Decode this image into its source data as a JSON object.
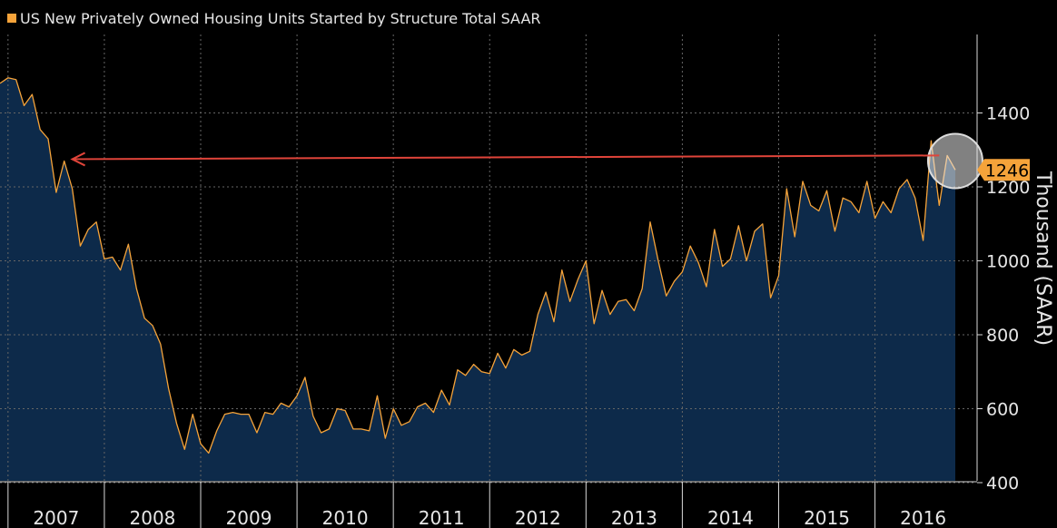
{
  "chart_data": {
    "type": "area",
    "title": "US New Privately Owned Housing Units Started by Structure Total SAAR",
    "ylabel": "Thousand (SAAR)",
    "xlabel": "",
    "ylim": [
      380,
      1570
    ],
    "y_ticks": [
      400,
      600,
      800,
      1000,
      1200,
      1400
    ],
    "year_labels": [
      "2007",
      "2008",
      "2009",
      "2010",
      "2011",
      "2012",
      "2013",
      "2014",
      "2015",
      "2016"
    ],
    "grid": true,
    "last_value_label": "1246",
    "colors": {
      "line": "#f5a33a",
      "fill": "#0d2a4a",
      "gridline": "#666666",
      "annotation_arrow": "#e0443a",
      "label_bg": "#f5a33a",
      "background": "#000000"
    },
    "annotation": {
      "type": "arrow",
      "from": {
        "date": "2016-09",
        "value": 1285
      },
      "to": {
        "date": "2007-09",
        "value": 1275
      },
      "highlight_circle": {
        "date": "2016-11",
        "value": 1270
      }
    },
    "series": [
      {
        "name": "US New Privately Owned Housing Units Started by Structure Total SAAR",
        "start": "2006-12",
        "frequency": "monthly",
        "values": [
          1480,
          1495,
          1490,
          1420,
          1450,
          1355,
          1330,
          1185,
          1270,
          1195,
          1040,
          1085,
          1105,
          1005,
          1010,
          975,
          1045,
          925,
          845,
          825,
          775,
          655,
          560,
          490,
          585,
          505,
          480,
          540,
          585,
          590,
          585,
          585,
          535,
          590,
          585,
          615,
          605,
          635,
          685,
          580,
          535,
          545,
          600,
          595,
          545,
          545,
          540,
          635,
          520,
          600,
          555,
          565,
          605,
          615,
          590,
          650,
          610,
          705,
          690,
          720,
          700,
          695,
          750,
          710,
          760,
          745,
          755,
          855,
          915,
          835,
          975,
          890,
          950,
          1000,
          830,
          920,
          855,
          890,
          895,
          865,
          925,
          1105,
          1000,
          905,
          945,
          970,
          1040,
          995,
          930,
          1085,
          985,
          1005,
          1095,
          1000,
          1080,
          1100,
          900,
          960,
          1195,
          1065,
          1215,
          1150,
          1135,
          1190,
          1080,
          1170,
          1160,
          1130,
          1215,
          1115,
          1160,
          1130,
          1195,
          1220,
          1170,
          1055,
          1325,
          1150,
          1285,
          1246
        ]
      }
    ]
  }
}
